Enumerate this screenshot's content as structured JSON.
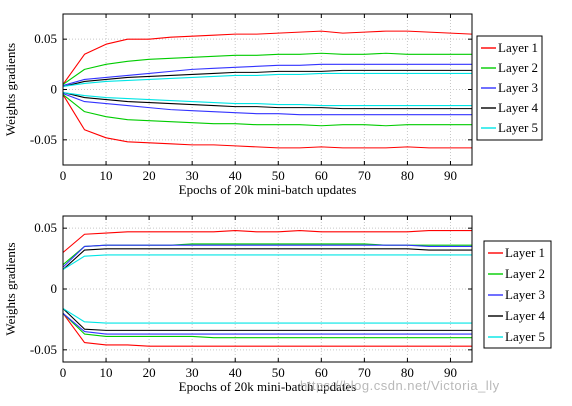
{
  "watermark": "https://blog.csdn.net/Victoria_lly",
  "chart_data": [
    {
      "type": "line",
      "title": "",
      "xlabel": "Epochs of 20k mini-batch updates",
      "ylabel": "Weights gradients",
      "xlim": [
        0,
        95
      ],
      "ylim": [
        -0.075,
        0.075
      ],
      "xticks": [
        0,
        10,
        20,
        30,
        40,
        50,
        60,
        70,
        80,
        90
      ],
      "yticks": [
        0.05,
        0,
        -0.05
      ],
      "ytick_labels": [
        "0.05",
        "0",
        "-0.05"
      ],
      "grid": "dotted",
      "legend_position": "right",
      "x": [
        0,
        5,
        10,
        15,
        20,
        25,
        30,
        35,
        40,
        45,
        50,
        55,
        60,
        65,
        70,
        75,
        80,
        85,
        90,
        95
      ],
      "series": [
        {
          "name": "Layer 1",
          "color": "#ff0000",
          "upper": [
            0.005,
            0.035,
            0.045,
            0.05,
            0.05,
            0.052,
            0.053,
            0.054,
            0.055,
            0.055,
            0.056,
            0.057,
            0.058,
            0.056,
            0.057,
            0.058,
            0.058,
            0.057,
            0.056,
            0.055
          ],
          "lower": [
            -0.005,
            -0.04,
            -0.048,
            -0.052,
            -0.053,
            -0.054,
            -0.055,
            -0.055,
            -0.056,
            -0.057,
            -0.058,
            -0.058,
            -0.057,
            -0.058,
            -0.058,
            -0.058,
            -0.057,
            -0.058,
            -0.058,
            -0.058
          ]
        },
        {
          "name": "Layer 2",
          "color": "#00cc00",
          "upper": [
            0.005,
            0.02,
            0.025,
            0.028,
            0.03,
            0.031,
            0.032,
            0.033,
            0.034,
            0.034,
            0.035,
            0.035,
            0.036,
            0.035,
            0.035,
            0.036,
            0.035,
            0.035,
            0.035,
            0.035
          ],
          "lower": [
            -0.005,
            -0.022,
            -0.027,
            -0.03,
            -0.031,
            -0.032,
            -0.033,
            -0.034,
            -0.034,
            -0.035,
            -0.035,
            -0.035,
            -0.036,
            -0.035,
            -0.035,
            -0.036,
            -0.035,
            -0.035,
            -0.035,
            -0.035
          ]
        },
        {
          "name": "Layer 3",
          "color": "#3333ff",
          "upper": [
            0.004,
            0.01,
            0.012,
            0.014,
            0.016,
            0.018,
            0.02,
            0.021,
            0.022,
            0.023,
            0.024,
            0.024,
            0.025,
            0.025,
            0.025,
            0.025,
            0.025,
            0.025,
            0.025,
            0.025
          ],
          "lower": [
            -0.004,
            -0.012,
            -0.014,
            -0.016,
            -0.018,
            -0.02,
            -0.021,
            -0.022,
            -0.023,
            -0.024,
            -0.024,
            -0.025,
            -0.025,
            -0.025,
            -0.025,
            -0.025,
            -0.025,
            -0.025,
            -0.025,
            -0.025
          ]
        },
        {
          "name": "Layer 4",
          "color": "#000000",
          "upper": [
            0.003,
            0.008,
            0.01,
            0.012,
            0.013,
            0.014,
            0.015,
            0.016,
            0.017,
            0.017,
            0.018,
            0.018,
            0.018,
            0.019,
            0.019,
            0.019,
            0.019,
            0.019,
            0.019,
            0.019
          ],
          "lower": [
            -0.003,
            -0.008,
            -0.01,
            -0.012,
            -0.013,
            -0.014,
            -0.015,
            -0.016,
            -0.017,
            -0.017,
            -0.018,
            -0.018,
            -0.018,
            -0.019,
            -0.019,
            -0.019,
            -0.019,
            -0.019,
            -0.019,
            -0.019
          ]
        },
        {
          "name": "Layer 5",
          "color": "#00e5e5",
          "upper": [
            0.003,
            0.006,
            0.008,
            0.009,
            0.01,
            0.011,
            0.012,
            0.013,
            0.014,
            0.014,
            0.015,
            0.015,
            0.016,
            0.016,
            0.016,
            0.016,
            0.016,
            0.016,
            0.016,
            0.016
          ],
          "lower": [
            -0.003,
            -0.006,
            -0.008,
            -0.009,
            -0.01,
            -0.011,
            -0.012,
            -0.013,
            -0.014,
            -0.014,
            -0.015,
            -0.015,
            -0.016,
            -0.016,
            -0.016,
            -0.016,
            -0.016,
            -0.016,
            -0.016,
            -0.016
          ]
        }
      ]
    },
    {
      "type": "line",
      "title": "",
      "xlabel": "Epochs of 20k mini-batch updates",
      "ylabel": "Weights gradients",
      "xlim": [
        0,
        95
      ],
      "ylim": [
        -0.06,
        0.06
      ],
      "xticks": [
        0,
        10,
        20,
        30,
        40,
        50,
        60,
        70,
        80,
        90
      ],
      "yticks": [
        0.05,
        0,
        -0.05
      ],
      "ytick_labels": [
        "0.05",
        "0",
        "-0.05"
      ],
      "grid": "dotted",
      "legend_position": "right",
      "x": [
        0,
        5,
        10,
        15,
        20,
        25,
        30,
        35,
        40,
        45,
        50,
        55,
        60,
        65,
        70,
        75,
        80,
        85,
        90,
        95
      ],
      "series": [
        {
          "name": "Layer 1",
          "color": "#ff0000",
          "upper": [
            0.03,
            0.045,
            0.046,
            0.047,
            0.047,
            0.047,
            0.047,
            0.047,
            0.048,
            0.047,
            0.047,
            0.048,
            0.047,
            0.047,
            0.047,
            0.047,
            0.047,
            0.048,
            0.048,
            0.048
          ],
          "lower": [
            -0.02,
            -0.044,
            -0.046,
            -0.046,
            -0.047,
            -0.047,
            -0.047,
            -0.047,
            -0.047,
            -0.047,
            -0.047,
            -0.047,
            -0.047,
            -0.047,
            -0.047,
            -0.047,
            -0.047,
            -0.047,
            -0.047,
            -0.047
          ]
        },
        {
          "name": "Layer 2",
          "color": "#00cc00",
          "upper": [
            0.02,
            0.035,
            0.036,
            0.036,
            0.036,
            0.036,
            0.037,
            0.037,
            0.037,
            0.037,
            0.037,
            0.037,
            0.037,
            0.037,
            0.037,
            0.036,
            0.036,
            0.036,
            0.036,
            0.036
          ],
          "lower": [
            -0.02,
            -0.037,
            -0.039,
            -0.039,
            -0.039,
            -0.039,
            -0.039,
            -0.04,
            -0.04,
            -0.04,
            -0.04,
            -0.04,
            -0.04,
            -0.04,
            -0.04,
            -0.04,
            -0.04,
            -0.04,
            -0.04,
            -0.04
          ]
        },
        {
          "name": "Layer 3",
          "color": "#3333ff",
          "upper": [
            0.018,
            0.035,
            0.036,
            0.036,
            0.036,
            0.036,
            0.036,
            0.036,
            0.036,
            0.036,
            0.036,
            0.036,
            0.036,
            0.036,
            0.036,
            0.036,
            0.036,
            0.035,
            0.035,
            0.035
          ],
          "lower": [
            -0.02,
            -0.035,
            -0.037,
            -0.037,
            -0.037,
            -0.037,
            -0.037,
            -0.037,
            -0.037,
            -0.037,
            -0.037,
            -0.037,
            -0.037,
            -0.037,
            -0.037,
            -0.037,
            -0.037,
            -0.037,
            -0.037,
            -0.037
          ]
        },
        {
          "name": "Layer 4",
          "color": "#000000",
          "upper": [
            0.016,
            0.032,
            0.033,
            0.033,
            0.033,
            0.033,
            0.033,
            0.033,
            0.033,
            0.033,
            0.033,
            0.033,
            0.033,
            0.033,
            0.033,
            0.033,
            0.033,
            0.032,
            0.032,
            0.032
          ],
          "lower": [
            -0.016,
            -0.033,
            -0.034,
            -0.034,
            -0.034,
            -0.034,
            -0.034,
            -0.034,
            -0.034,
            -0.034,
            -0.034,
            -0.034,
            -0.034,
            -0.034,
            -0.034,
            -0.034,
            -0.034,
            -0.034,
            -0.034,
            -0.034
          ]
        },
        {
          "name": "Layer 5",
          "color": "#00e5e5",
          "upper": [
            0.016,
            0.027,
            0.028,
            0.028,
            0.028,
            0.028,
            0.028,
            0.028,
            0.028,
            0.028,
            0.028,
            0.028,
            0.028,
            0.028,
            0.028,
            0.028,
            0.028,
            0.028,
            0.028,
            0.028
          ],
          "lower": [
            -0.016,
            -0.027,
            -0.028,
            -0.028,
            -0.028,
            -0.028,
            -0.028,
            -0.028,
            -0.028,
            -0.028,
            -0.028,
            -0.028,
            -0.028,
            -0.028,
            -0.028,
            -0.028,
            -0.028,
            -0.028,
            -0.028,
            -0.028
          ]
        }
      ]
    }
  ]
}
